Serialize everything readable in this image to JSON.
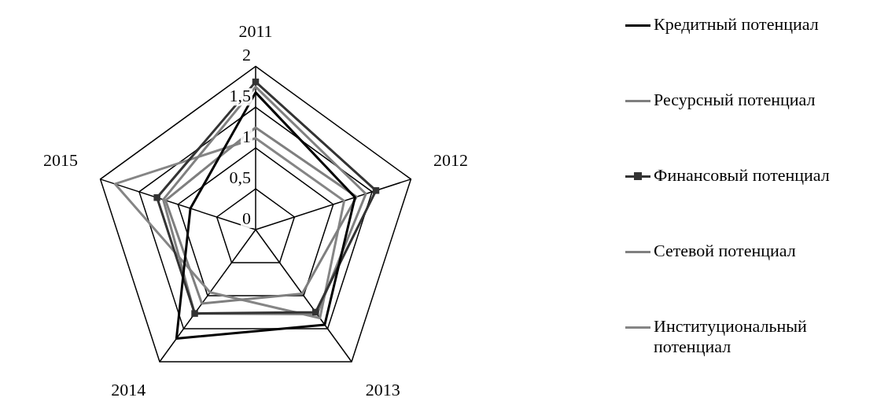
{
  "chart_data": {
    "type": "radar",
    "categories": [
      "2011",
      "2012",
      "2013",
      "2014",
      "2015"
    ],
    "series": [
      {
        "name": "Кредитный потенциал",
        "color": "#000000",
        "values": [
          1.68,
          1.28,
          1.44,
          1.65,
          0.84
        ]
      },
      {
        "name": "Ресурсный потенциал",
        "color": "#7f7f7f",
        "values": [
          1.25,
          1.3,
          0.97,
          1.12,
          1.16
        ]
      },
      {
        "name": "Финансовый потенциал",
        "color": "#333333",
        "marker": "square",
        "values": [
          1.81,
          1.55,
          1.25,
          1.27,
          1.27
        ]
      },
      {
        "name": "Сетевой потенциал",
        "color": "#808080",
        "values": [
          1.75,
          1.42,
          1.28,
          1.27,
          1.19
        ]
      },
      {
        "name": "Институциональный потенциал",
        "color": "#858585",
        "values": [
          1.12,
          1.14,
          1.34,
          0.95,
          1.81
        ]
      }
    ],
    "ylim": [
      0,
      2
    ],
    "yticks": [
      0,
      {
        "value": 0.5,
        "label": "0,5"
      },
      1,
      {
        "value": 1.5,
        "label": "1,5"
      },
      2
    ],
    "grid": true,
    "legend": "right",
    "marker": "none"
  }
}
